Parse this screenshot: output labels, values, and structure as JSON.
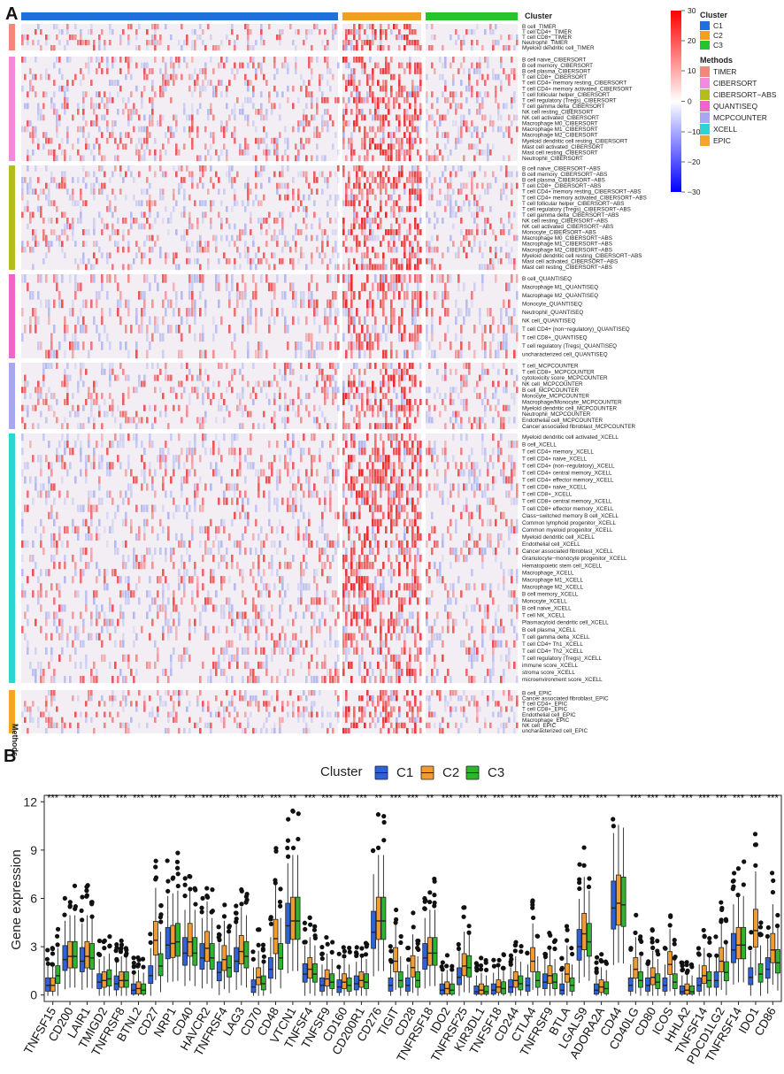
{
  "panelA": {
    "letter": "A",
    "cluster_legend": {
      "title": "Cluster",
      "items": [
        {
          "label": "C1",
          "color": "#1E6FE0"
        },
        {
          "label": "C2",
          "color": "#F2A023"
        },
        {
          "label": "C3",
          "color": "#22C52A"
        }
      ]
    },
    "top_bar_label": "Cluster",
    "methods_legend": {
      "title": "Methods",
      "items": [
        {
          "label": "TIMER",
          "color": "#F4877A"
        },
        {
          "label": "CIBERSORT",
          "color": "#F28BDE"
        },
        {
          "label": "CIBERSORT−ABS",
          "color": "#B5BD1D"
        },
        {
          "label": "QUANTISEQ",
          "color": "#EE66C9"
        },
        {
          "label": "MCPCOUNTER",
          "color": "#A9A7F2"
        },
        {
          "label": "XCELL",
          "color": "#2BD6D0"
        },
        {
          "label": "EPIC",
          "color": "#F3A623"
        }
      ]
    },
    "methods_axis_label": "Methods",
    "colorbar": {
      "ticks": [
        "30",
        "20",
        "10",
        "0",
        "−10",
        "−20",
        "−30"
      ]
    },
    "groups": [
      {
        "method": "TIMER",
        "rows": [
          "B cell_TIMER",
          "T cell CD4+_TIMER",
          "T cell CD8+_TIMER",
          "Neutrophil_TIMER",
          "Myeloid dendritic cell_TIMER"
        ]
      },
      {
        "method": "CIBERSORT",
        "rows": [
          "B cell naive_CIBERSORT",
          "B cell memory_CIBERSORT",
          "B cell plasma_CIBERSORT",
          "T cell CD8+_CIBERSORT",
          "T cell CD4+ memory resting_CIBERSORT",
          "T cell CD4+ memory activated_CIBERSORT",
          "T cell follicular helper_CIBERSORT",
          "T cell regulatory (Tregs)_CIBERSORT",
          "T cell gamma delta_CIBERSORT",
          "NK cell resting_CIBERSORT",
          "NK cell activated_CIBERSORT",
          "Macrophage M0_CIBERSORT",
          "Macrophage M1_CIBERSORT",
          "Macrophage M2_CIBERSORT",
          "Myeloid dendritic cell resting_CIBERSORT",
          "Mast cell activated_CIBERSORT",
          "Mast cell resting_CIBERSORT",
          "Neutrophil_CIBERSORT"
        ]
      },
      {
        "method": "CIBERSORT−ABS",
        "rows": [
          "B cell naive_CIBERSORT−ABS",
          "B cell memory_CIBERSORT−ABS",
          "B cell plasma_CIBERSORT−ABS",
          "T cell CD8+_CIBERSORT−ABS",
          "T cell CD4+ memory resting_CIBERSORT−ABS",
          "T cell CD4+ memory activated_CIBERSORT−ABS",
          "T cell follicular helper_CIBERSORT−ABS",
          "T cell regulatory (Tregs)_CIBERSORT−ABS",
          "T cell gamma delta_CIBERSORT−ABS",
          "NK cell resting_CIBERSORT−ABS",
          "NK cell activated_CIBERSORT−ABS",
          "Monocyte_CIBERSORT−ABS",
          "Macrophage M0_CIBERSORT−ABS",
          "Macrophage M1_CIBERSORT−ABS",
          "Macrophage M2_CIBERSORT−ABS",
          "Myeloid dendritic cell resting_CIBERSORT−ABS",
          "Mast cell activated_CIBERSORT−ABS",
          "Mast cell resting_CIBERSORT−ABS"
        ]
      },
      {
        "method": "QUANTISEQ",
        "rows": [
          "B cell_QUANTISEQ",
          "Macrophage M1_QUANTISEQ",
          "Macrophage M2_QUANTISEQ",
          "Monocyte_QUANTISEQ",
          "Neutrophil_QUANTISEQ",
          "NK cell_QUANTISEQ",
          "T cell CD4+ (non−regulatory)_QUANTISEQ",
          "T cell CD8+_QUANTISEQ",
          "T cell regulatory (Tregs)_QUANTISEQ",
          "uncharacterized cell_QUANTISEQ"
        ]
      },
      {
        "method": "MCPCOUNTER",
        "rows": [
          "T cell_MCPCOUNTER",
          "T cell CD8+_MCPCOUNTER",
          "cytotoxicity score_MCPCOUNTER",
          "NK cell_MCPCOUNTER",
          "B cell_MCPCOUNTER",
          "Monocyte_MCPCOUNTER",
          "Macrophage/Monocyte_MCPCOUNTER",
          "Myeloid dendritic cell_MCPCOUNTER",
          "Neutrophil_MCPCOUNTER",
          "Endothelial cell_MCPCOUNTER",
          "Cancer associated fibroblast_MCPCOUNTER"
        ]
      },
      {
        "method": "XCELL",
        "rows": [
          "Myeloid dendritic cell activated_XCELL",
          "B cell_XCELL",
          "T cell CD4+ memory_XCELL",
          "T cell CD4+ naive_XCELL",
          "T cell CD4+ (non−regulatory)_XCELL",
          "T cell CD4+ central memory_XCELL",
          "T cell CD4+ effector memory_XCELL",
          "T cell CD8+ naive_XCELL",
          "T cell CD8+_XCELL",
          "T cell CD8+ central memory_XCELL",
          "T cell CD8+ effector memory_XCELL",
          "Class−switched memory B cell_XCELL",
          "Common lymphoid progenitor_XCELL",
          "Common myeloid progenitor_XCELL",
          "Myeloid dendritic cell_XCELL",
          "Endothelial cell_XCELL",
          "Cancer associated fibroblast_XCELL",
          "Granulocyte−monocyte progenitor_XCELL",
          "Hematopoietic stem cell_XCELL",
          "Macrophage_XCELL",
          "Macrophage M1_XCELL",
          "Macrophage M2_XCELL",
          "B cell memory_XCELL",
          "Monocyte_XCELL",
          "B cell naive_XCELL",
          "T cell NK_XCELL",
          "Plasmacytoid dendritic cell_XCELL",
          "B cell plasma_XCELL",
          "T cell gamma delta_XCELL",
          "T cell CD4+ Th1_XCELL",
          "T cell CD4+ Th2_XCELL",
          "T cell regulatory (Tregs)_XCELL",
          "immune score_XCELL",
          "stroma score_XCELL",
          "microenvironment score_XCELL"
        ]
      },
      {
        "method": "EPIC",
        "rows": [
          "B cell_EPIC",
          "Cancer associated fibroblast_EPIC",
          "T cell CD4+_EPIC",
          "T cell CD8+_EPIC",
          "Endothelial cell_EPIC",
          "Macrophage_EPIC",
          "NK cell_EPIC",
          "uncharacterized cell_EPIC"
        ]
      }
    ]
  },
  "panelB": {
    "letter": "B",
    "legend_title": "Cluster",
    "legend_items": [
      {
        "label": "C1",
        "color": "#2F62D9"
      },
      {
        "label": "C2",
        "color": "#F29B33"
      },
      {
        "label": "C3",
        "color": "#2DB52D"
      }
    ],
    "chart_data": {
      "type": "box",
      "ylabel": "Gene expression",
      "ylim": [
        -0.4,
        12.4
      ],
      "yticks": [
        0,
        3,
        6,
        9,
        12
      ],
      "series_names": [
        "C1",
        "C2",
        "C3"
      ],
      "categories": [
        "TNFSF15",
        "CD200",
        "LAIR1",
        "TMIGD2",
        "TNFRSF8",
        "BTNL2",
        "CD27",
        "NRP1",
        "CD40",
        "HAVCR2",
        "TNFRSF4",
        "LAG3",
        "CD70",
        "CD48",
        "VTCN1",
        "TNFSF4",
        "TNFSF9",
        "CD160",
        "CD200R1",
        "CD276",
        "TIGIT",
        "CD28",
        "TNFRSF18",
        "IDO2",
        "TNFRSF25",
        "KIR3DL1",
        "TNFSF18",
        "CD244",
        "CTLA4",
        "TNFRSF9",
        "BTLA",
        "LGALS9",
        "ADORA2A",
        "CD44",
        "CD40LG",
        "CD80",
        "ICOS",
        "HHLA2",
        "TNFSF14",
        "PDCD1LG2",
        "TNFRSF14",
        "IDO1",
        "CD86"
      ],
      "significance": [
        "***",
        "***",
        "***",
        "***",
        "***",
        "***",
        "***",
        "**",
        "***",
        "***",
        "***",
        "***",
        "***",
        "***",
        "**",
        "***",
        "***",
        "***",
        "***",
        "**",
        "***",
        "***",
        "**",
        "***",
        "***",
        "***",
        "***",
        "***",
        "***",
        "***",
        "***",
        "***",
        "***",
        "*",
        "***",
        "***",
        "***",
        "***",
        "***",
        "***",
        "***",
        "***",
        "***"
      ],
      "medians": [
        [
          0.6,
          0.6,
          1.2
        ],
        [
          2.2,
          2.4,
          2.4
        ],
        [
          2.1,
          2.4,
          2.3
        ],
        [
          0.8,
          0.9,
          1.0
        ],
        [
          0.7,
          0.9,
          0.9
        ],
        [
          0.3,
          0.4,
          0.3
        ],
        [
          1.2,
          3.4,
          1.8
        ],
        [
          3.1,
          3.2,
          3.3
        ],
        [
          2.6,
          3.3,
          2.6
        ],
        [
          2.3,
          2.9,
          2.3
        ],
        [
          1.4,
          2.2,
          1.7
        ],
        [
          2.1,
          2.7,
          2.4
        ],
        [
          0.5,
          1.1,
          0.7
        ],
        [
          1.6,
          3.5,
          2.3
        ],
        [
          4.3,
          4.6,
          4.6
        ],
        [
          1.3,
          1.6,
          1.3
        ],
        [
          0.6,
          1.0,
          0.8
        ],
        [
          0.5,
          0.8,
          0.6
        ],
        [
          0.7,
          0.9,
          0.8
        ],
        [
          3.9,
          4.6,
          4.6
        ],
        [
          0.6,
          2.1,
          0.9
        ],
        [
          0.6,
          1.7,
          0.9
        ],
        [
          2.3,
          2.6,
          2.6
        ],
        [
          0.3,
          0.4,
          0.3
        ],
        [
          1.1,
          1.8,
          1.7
        ],
        [
          0.2,
          0.3,
          0.2
        ],
        [
          0.3,
          0.5,
          0.4
        ],
        [
          0.5,
          0.9,
          0.7
        ],
        [
          0.6,
          2.1,
          0.9
        ],
        [
          0.8,
          1.2,
          0.8
        ],
        [
          0.3,
          1.3,
          0.6
        ],
        [
          3.0,
          3.8,
          3.3
        ],
        [
          0.3,
          0.5,
          0.4
        ],
        [
          5.4,
          5.7,
          5.6
        ],
        [
          0.6,
          1.6,
          0.9
        ],
        [
          0.6,
          1.1,
          0.8
        ],
        [
          0.6,
          1.9,
          0.8
        ],
        [
          0.2,
          0.3,
          0.2
        ],
        [
          0.6,
          1.2,
          0.9
        ],
        [
          0.9,
          2.1,
          1.4
        ],
        [
          2.8,
          3.1,
          3.1
        ],
        [
          1.1,
          4.0,
          1.3
        ],
        [
          1.6,
          2.8,
          2.0
        ]
      ]
    }
  }
}
